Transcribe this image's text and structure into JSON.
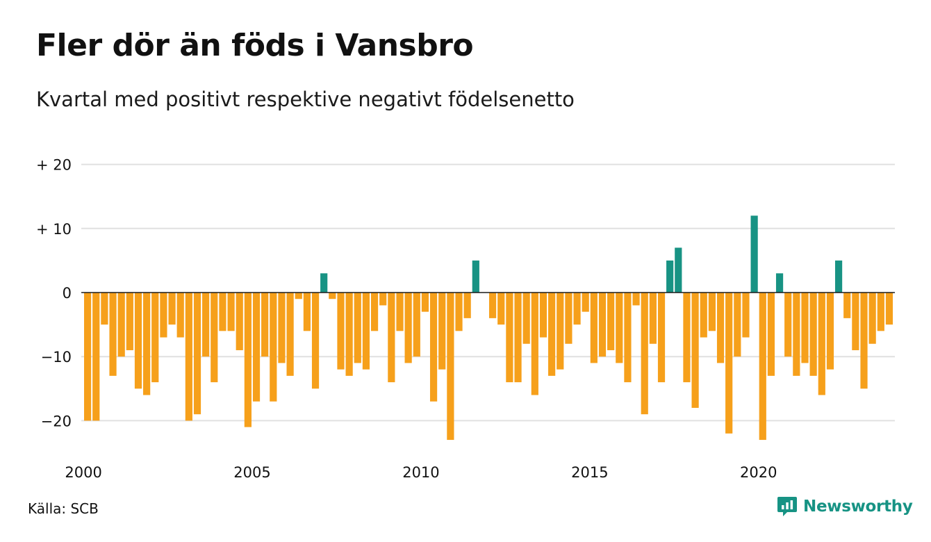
{
  "title": "Fler dör än föds i Vansbro",
  "subtitle": "Kvartal med positivt respektive negativt födelsenetto",
  "source": "Källa: SCB",
  "brand": {
    "name": "Newsworthy",
    "icon": "newsworthy-logo-icon",
    "color": "#179384"
  },
  "chart_data": {
    "type": "bar",
    "title": "Fler dör än föds i Vansbro",
    "subtitle": "Kvartal med positivt respektive negativt födelsenetto",
    "x_start": 2000,
    "periods_per_year": 4,
    "x_ticks": [
      2000,
      2005,
      2010,
      2015,
      2020
    ],
    "x_tick_labels": [
      "2000",
      "2005",
      "2010",
      "2015",
      "2020"
    ],
    "y_ticks": [
      20,
      10,
      0,
      -10,
      -20
    ],
    "y_tick_labels": [
      "+ 20",
      "+ 10",
      "0",
      "−10",
      "−20"
    ],
    "ylim": [
      -25,
      20
    ],
    "grid": true,
    "colors": {
      "positive": "#189384",
      "negative": "#F6A01B"
    },
    "values": [
      -20,
      -20,
      -5,
      -13,
      -10,
      -9,
      -15,
      -16,
      -14,
      -7,
      -5,
      -7,
      -20,
      -19,
      -10,
      -14,
      -6,
      -6,
      -9,
      -21,
      -17,
      -10,
      -17,
      -11,
      -13,
      -1,
      -6,
      -15,
      3,
      -1,
      -12,
      -13,
      -11,
      -12,
      -6,
      -2,
      -14,
      -6,
      -11,
      -10,
      -3,
      -17,
      -12,
      -23,
      -6,
      -4,
      5,
      0,
      -4,
      -5,
      -14,
      -14,
      -8,
      -16,
      -7,
      -13,
      -12,
      -8,
      -5,
      -3,
      -11,
      -10,
      -9,
      -11,
      -14,
      -2,
      -19,
      -8,
      -14,
      5,
      7,
      -14,
      -18,
      -7,
      -6,
      -11,
      -22,
      -10,
      -7,
      12,
      -23,
      -13,
      3,
      -10,
      -13,
      -11,
      -13,
      -16,
      -12,
      5,
      -4,
      -9,
      -15,
      -8,
      -6,
      -5
    ]
  }
}
